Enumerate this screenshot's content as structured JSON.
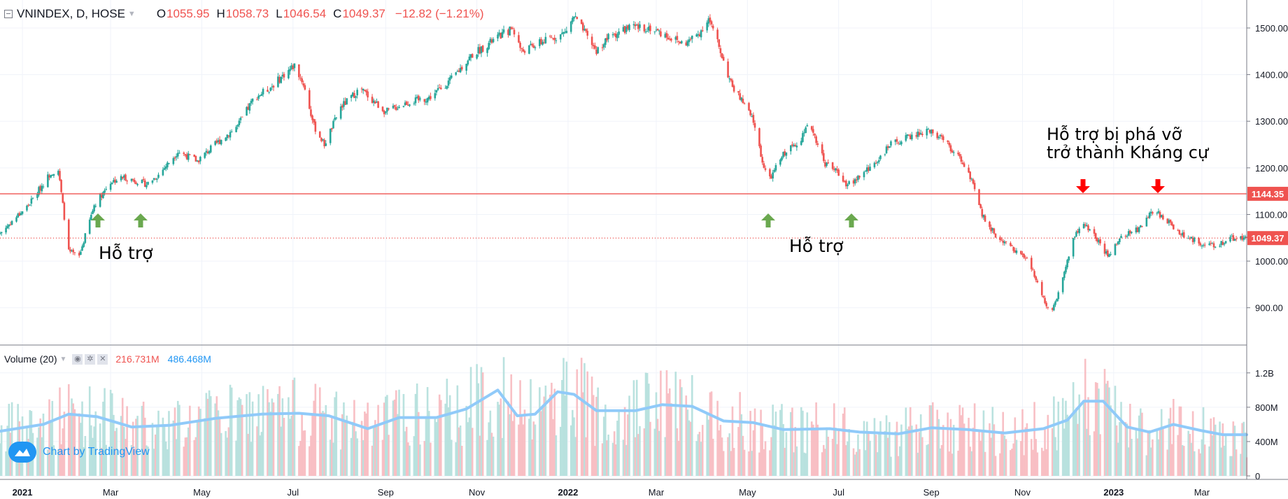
{
  "header": {
    "symbol": "VNINDEX, D, HOSE",
    "open_label": "O",
    "open": "1055.95",
    "high_label": "H",
    "high": "1058.73",
    "low_label": "L",
    "low": "1046.54",
    "close_label": "C",
    "close": "1049.37",
    "change": "−12.82 (−1.21%)"
  },
  "volume_header": {
    "label": "Volume (20)",
    "volume": "216.731M",
    "ma": "486.468M"
  },
  "badge": {
    "text": "Chart by TradingView"
  },
  "annotations": {
    "support_left": "Hỗ trợ",
    "support_right": "Hỗ trợ",
    "resistance_line1": "Hỗ trợ bị phá vỡ",
    "resistance_line2": "trở thành Kháng cự"
  },
  "colors": {
    "up": "#26a69a",
    "down": "#ef5350",
    "volume_ma": "#90caf9",
    "support_arrow": "#6aa84f",
    "resistance_arrow": "#ff0000",
    "level_line": "#ef5350",
    "blue": "#2196f3"
  },
  "chart_data": [
    {
      "type": "candlestick",
      "title": "VNINDEX, D, HOSE",
      "ylim": [
        820,
        1560
      ],
      "y_ticks": [
        "1500.00",
        "1400.00",
        "1300.00",
        "1200.00",
        "1100.00",
        "1000.00",
        "900.00"
      ],
      "y_tick_values": [
        1500,
        1400,
        1300,
        1200,
        1100,
        1000,
        900
      ],
      "x_tick_labels": [
        "2021",
        "Mar",
        "May",
        "Jul",
        "Sep",
        "Nov",
        "2022",
        "Mar",
        "May",
        "Jul",
        "Sep",
        "Nov",
        "2023",
        "Mar"
      ],
      "x_tick_dates": [
        "2021-01-01",
        "2021-03-01",
        "2021-05-01",
        "2021-07-01",
        "2021-09-01",
        "2021-11-01",
        "2022-01-01",
        "2022-03-01",
        "2022-05-01",
        "2022-07-01",
        "2022-09-01",
        "2022-11-01",
        "2023-01-01",
        "2023-03-01"
      ],
      "x_range": [
        "2020-12-17",
        "2023-03-31"
      ],
      "levels": [
        {
          "value": 1144.35,
          "label": "1144.35",
          "style": "solid"
        },
        {
          "value": 1049.37,
          "label": "1049.37",
          "style": "dotted"
        }
      ],
      "close_path": [
        [
          "2020-12-17",
          1060
        ],
        [
          "2021-01-05",
          1120
        ],
        [
          "2021-01-20",
          1190
        ],
        [
          "2021-01-25",
          1195
        ],
        [
          "2021-02-01",
          1020
        ],
        [
          "2021-02-08",
          1010
        ],
        [
          "2021-02-18",
          1120
        ],
        [
          "2021-03-01",
          1170
        ],
        [
          "2021-03-10",
          1180
        ],
        [
          "2021-03-25",
          1165
        ],
        [
          "2021-04-02",
          1185
        ],
        [
          "2021-04-15",
          1235
        ],
        [
          "2021-04-28",
          1215
        ],
        [
          "2021-05-10",
          1250
        ],
        [
          "2021-05-25",
          1290
        ],
        [
          "2021-06-05",
          1350
        ],
        [
          "2021-06-15",
          1370
        ],
        [
          "2021-06-25",
          1400
        ],
        [
          "2021-07-02",
          1420
        ],
        [
          "2021-07-08",
          1380
        ],
        [
          "2021-07-15",
          1290
        ],
        [
          "2021-07-22",
          1250
        ],
        [
          "2021-08-02",
          1330
        ],
        [
          "2021-08-15",
          1370
        ],
        [
          "2021-08-25",
          1340
        ],
        [
          "2021-09-01",
          1320
        ],
        [
          "2021-09-15",
          1340
        ],
        [
          "2021-09-30",
          1350
        ],
        [
          "2021-10-15",
          1390
        ],
        [
          "2021-10-28",
          1440
        ],
        [
          "2021-11-15",
          1480
        ],
        [
          "2021-11-25",
          1500
        ],
        [
          "2021-12-01",
          1450
        ],
        [
          "2021-12-15",
          1470
        ],
        [
          "2021-12-30",
          1490
        ],
        [
          "2022-01-05",
          1525
        ],
        [
          "2022-01-12",
          1490
        ],
        [
          "2022-01-20",
          1450
        ],
        [
          "2022-01-28",
          1480
        ],
        [
          "2022-02-10",
          1500
        ],
        [
          "2022-02-25",
          1500
        ],
        [
          "2022-03-10",
          1480
        ],
        [
          "2022-03-20",
          1465
        ],
        [
          "2022-03-30",
          1490
        ],
        [
          "2022-04-05",
          1520
        ],
        [
          "2022-04-12",
          1460
        ],
        [
          "2022-04-20",
          1380
        ],
        [
          "2022-04-28",
          1340
        ],
        [
          "2022-05-05",
          1300
        ],
        [
          "2022-05-12",
          1200
        ],
        [
          "2022-05-16",
          1175
        ],
        [
          "2022-05-25",
          1230
        ],
        [
          "2022-06-05",
          1260
        ],
        [
          "2022-06-12",
          1295
        ],
        [
          "2022-06-16",
          1260
        ],
        [
          "2022-06-22",
          1210
        ],
        [
          "2022-07-01",
          1190
        ],
        [
          "2022-07-06",
          1160
        ],
        [
          "2022-07-12",
          1175
        ],
        [
          "2022-07-22",
          1200
        ],
        [
          "2022-08-05",
          1250
        ],
        [
          "2022-08-20",
          1270
        ],
        [
          "2022-09-01",
          1280
        ],
        [
          "2022-09-12",
          1250
        ],
        [
          "2022-09-25",
          1200
        ],
        [
          "2022-10-05",
          1100
        ],
        [
          "2022-10-15",
          1050
        ],
        [
          "2022-10-25",
          1030
        ],
        [
          "2022-11-05",
          1000
        ],
        [
          "2022-11-15",
          920
        ],
        [
          "2022-11-20",
          890
        ],
        [
          "2022-11-27",
          950
        ],
        [
          "2022-12-05",
          1050
        ],
        [
          "2022-12-12",
          1080
        ],
        [
          "2022-12-20",
          1050
        ],
        [
          "2022-12-28",
          1010
        ],
        [
          "2023-01-06",
          1050
        ],
        [
          "2023-01-18",
          1070
        ],
        [
          "2023-01-28",
          1110
        ],
        [
          "2023-02-08",
          1080
        ],
        [
          "2023-02-18",
          1050
        ],
        [
          "2023-02-28",
          1040
        ],
        [
          "2023-03-10",
          1030
        ],
        [
          "2023-03-20",
          1050
        ],
        [
          "2023-03-31",
          1049.37
        ]
      ]
    },
    {
      "type": "bar",
      "title": "Volume (20)",
      "ylim": [
        0,
        1500
      ],
      "unit": "M",
      "y_ticks": [
        "1.2B",
        "800M",
        "400M",
        "0"
      ],
      "y_tick_values": [
        1200,
        800,
        400,
        0
      ],
      "ma_path": [
        [
          "2020-12-17",
          520
        ],
        [
          "2021-01-15",
          600
        ],
        [
          "2021-02-01",
          720
        ],
        [
          "2021-02-20",
          690
        ],
        [
          "2021-03-15",
          570
        ],
        [
          "2021-04-10",
          590
        ],
        [
          "2021-05-10",
          670
        ],
        [
          "2021-06-10",
          720
        ],
        [
          "2021-07-05",
          730
        ],
        [
          "2021-07-25",
          700
        ],
        [
          "2021-08-20",
          550
        ],
        [
          "2021-09-10",
          680
        ],
        [
          "2021-10-05",
          680
        ],
        [
          "2021-10-25",
          780
        ],
        [
          "2021-11-15",
          1000
        ],
        [
          "2021-11-28",
          700
        ],
        [
          "2021-12-10",
          720
        ],
        [
          "2021-12-25",
          980
        ],
        [
          "2022-01-05",
          950
        ],
        [
          "2022-01-20",
          760
        ],
        [
          "2022-02-15",
          760
        ],
        [
          "2022-03-05",
          830
        ],
        [
          "2022-03-25",
          810
        ],
        [
          "2022-04-15",
          640
        ],
        [
          "2022-05-05",
          620
        ],
        [
          "2022-05-25",
          540
        ],
        [
          "2022-06-25",
          550
        ],
        [
          "2022-07-15",
          510
        ],
        [
          "2022-08-10",
          490
        ],
        [
          "2022-09-01",
          560
        ],
        [
          "2022-09-25",
          540
        ],
        [
          "2022-10-20",
          500
        ],
        [
          "2022-11-15",
          550
        ],
        [
          "2022-12-01",
          650
        ],
        [
          "2022-12-12",
          870
        ],
        [
          "2022-12-25",
          870
        ],
        [
          "2023-01-10",
          570
        ],
        [
          "2023-01-25",
          510
        ],
        [
          "2023-02-10",
          600
        ],
        [
          "2023-02-28",
          530
        ],
        [
          "2023-03-15",
          480
        ],
        [
          "2023-03-31",
          480
        ]
      ],
      "last_volume": 216.731,
      "last_ma": 486.468
    }
  ]
}
